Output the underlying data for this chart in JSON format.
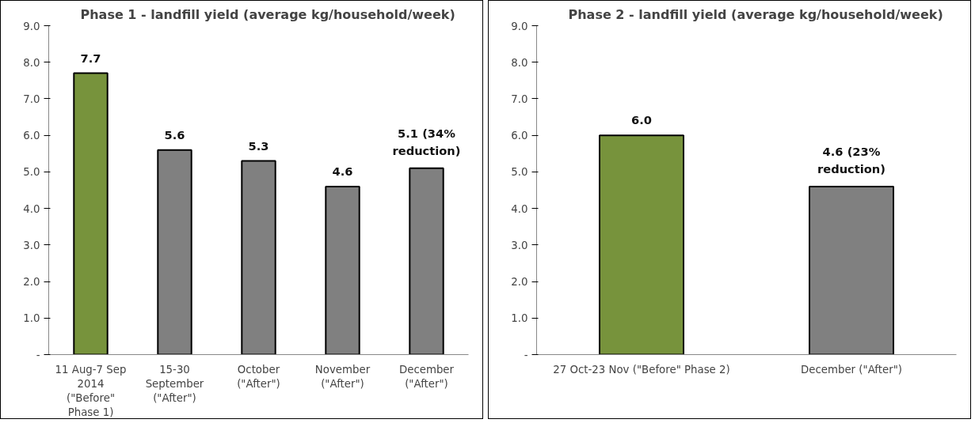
{
  "chart_data": [
    {
      "type": "bar",
      "title": "Phase 1 - landfill yield (average kg/household/week)",
      "categories": [
        "11 Aug-7 Sep 2014 (\"Before\" Phase 1)",
        "15-30 September (\"After\")",
        "October (\"After\")",
        "November (\"After\")",
        "December (\"After\")"
      ],
      "values": [
        7.7,
        5.6,
        5.3,
        4.6,
        5.1
      ],
      "colors": [
        "#77933c",
        "#808080",
        "#808080",
        "#808080",
        "#808080"
      ],
      "value_labels": [
        "7.7",
        "5.6",
        "5.3",
        "4.6",
        "5.1 (34% reduction)"
      ],
      "ylim": [
        0,
        9
      ],
      "yticks": [
        {
          "value": 0,
          "label": "-"
        },
        {
          "value": 1,
          "label": "1.0"
        },
        {
          "value": 2,
          "label": "2.0"
        },
        {
          "value": 3,
          "label": "3.0"
        },
        {
          "value": 4,
          "label": "4.0"
        },
        {
          "value": 5,
          "label": "5.0"
        },
        {
          "value": 6,
          "label": "6.0"
        },
        {
          "value": 7,
          "label": "7.0"
        },
        {
          "value": 8,
          "label": "8.0"
        },
        {
          "value": 9,
          "label": "9.0"
        }
      ],
      "grid": false
    },
    {
      "type": "bar",
      "title": "Phase 2 - landfill yield (average kg/household/week)",
      "categories": [
        "27 Oct-23 Nov (\"Before\" Phase 2)",
        "December (\"After\")"
      ],
      "values": [
        6.0,
        4.6
      ],
      "colors": [
        "#77933c",
        "#808080"
      ],
      "value_labels": [
        "6.0",
        "4.6 (23% reduction)"
      ],
      "ylim": [
        0,
        9
      ],
      "yticks": [
        {
          "value": 0,
          "label": "-"
        },
        {
          "value": 1,
          "label": "1.0"
        },
        {
          "value": 2,
          "label": "2.0"
        },
        {
          "value": 3,
          "label": "3.0"
        },
        {
          "value": 4,
          "label": "4.0"
        },
        {
          "value": 5,
          "label": "5.0"
        },
        {
          "value": 6,
          "label": "6.0"
        },
        {
          "value": 7,
          "label": "7.0"
        },
        {
          "value": 8,
          "label": "8.0"
        },
        {
          "value": 9,
          "label": "9.0"
        }
      ],
      "grid": false
    }
  ]
}
